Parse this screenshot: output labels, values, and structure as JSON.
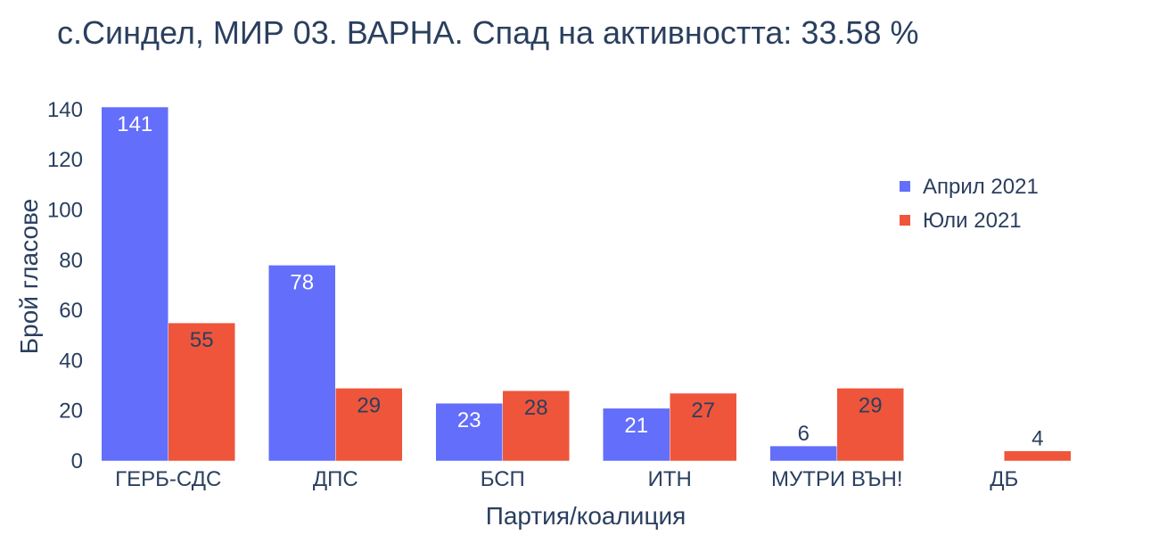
{
  "chart_data": {
    "type": "bar",
    "title": "с.Синдел, МИР 03. ВАРНА. Спад на активността: 33.58 %",
    "xlabel": "Партия/коалиция",
    "ylabel": "Брой гласове",
    "categories": [
      "ГЕРБ-СДС",
      "ДПС",
      "БСП",
      "ИТН",
      "МУТРИ ВЪН!",
      "ДБ"
    ],
    "series": [
      {
        "name": "Април 2021",
        "color": "#636efa",
        "values": [
          141,
          78,
          23,
          21,
          6,
          0
        ],
        "labels": [
          "141",
          "78",
          "23",
          "21",
          "6",
          ""
        ]
      },
      {
        "name": "Юли 2021",
        "color": "#ef553b",
        "values": [
          55,
          29,
          28,
          27,
          29,
          4
        ],
        "labels": [
          "55",
          "29",
          "28",
          "27",
          "29",
          "4"
        ]
      }
    ],
    "yticks": [
      0,
      20,
      40,
      60,
      80,
      100,
      120,
      140
    ],
    "ylim": [
      0,
      141
    ],
    "grid": false,
    "legend": "top-right"
  }
}
